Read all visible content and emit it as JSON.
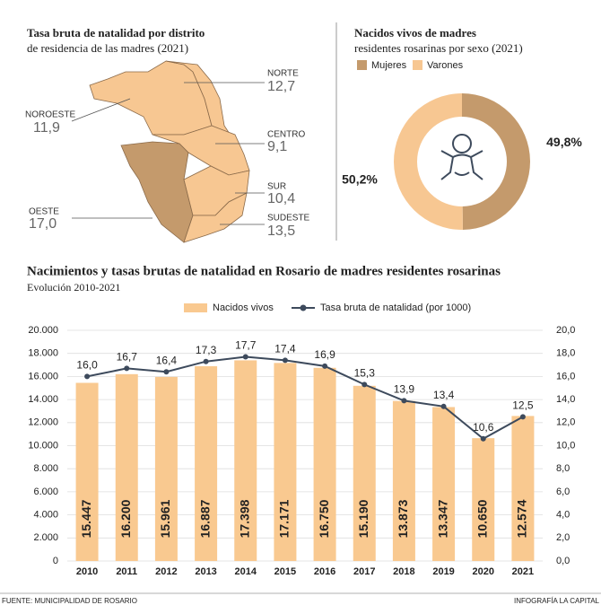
{
  "map": {
    "title": [
      "Tasa bruta de natalidad por distrito",
      "de residencia de las madres (2021)"
    ],
    "districts": [
      {
        "name": "NORTE",
        "value": {
          "value": 12.7,
          "label": "12,7"
        }
      },
      {
        "name": "NOROESTE",
        "value": {
          "value": 11.9,
          "label": "11,9"
        }
      },
      {
        "name": "CENTRO",
        "value": {
          "value": 9.1,
          "label": "9,1"
        }
      },
      {
        "name": "SUR",
        "value": {
          "value": 10.4,
          "label": "10,4"
        }
      },
      {
        "name": "OESTE",
        "value": {
          "value": 17.0,
          "label": "17,0"
        }
      },
      {
        "name": "SUDESTE",
        "value": {
          "value": 13.5,
          "label": "13,5"
        }
      }
    ]
  },
  "chart_data": [
    {
      "type": "pie",
      "donut": true,
      "title": [
        "Nacidos vivos de madres",
        "residentes rosarinas por sexo (2021)"
      ],
      "categories": [
        "Mujeres",
        "Varones"
      ],
      "values": [
        49.8,
        50.2
      ],
      "value_labels": [
        "49,8%",
        "50,2%"
      ],
      "colors": [
        "#c49a6c",
        "#f7c792"
      ]
    },
    {
      "type": "bar",
      "title": "Nacimientos y tasas brutas de natalidad en Rosario de madres residentes rosarinas",
      "subtitle": "Evolución 2010-2021",
      "categories": [
        "2010",
        "2011",
        "2012",
        "2013",
        "2014",
        "2015",
        "2016",
        "2017",
        "2018",
        "2019",
        "2020",
        "2021"
      ],
      "series": [
        {
          "name": "Nacidos vivos",
          "type": "bar",
          "color": "#f9c990",
          "values": [
            15447,
            16200,
            15961,
            16887,
            17398,
            17171,
            16750,
            15190,
            13873,
            13347,
            10650,
            12574
          ],
          "value_labels": [
            "15.447",
            "16.200",
            "15.961",
            "16.887",
            "17.398",
            "17.171",
            "16.750",
            "15.190",
            "13.873",
            "13.347",
            "10.650",
            "12.574"
          ]
        },
        {
          "name": "Tasa bruta de natalidad (por 1000)",
          "type": "line",
          "axis": "y2",
          "color": "#3d4a5c",
          "values": [
            16.0,
            16.7,
            16.4,
            17.3,
            17.7,
            17.4,
            16.9,
            15.3,
            13.9,
            13.4,
            10.6,
            12.5
          ],
          "value_labels": [
            "16,0",
            "16,7",
            "16,4",
            "17,3",
            "17,7",
            "17,4",
            "16,9",
            "15,3",
            "13,9",
            "13,4",
            "10,6",
            "12,5"
          ]
        }
      ],
      "ylim": [
        0,
        20000
      ],
      "yticks": [
        0,
        {
          "value": 2000,
          "label": "2.000"
        },
        {
          "value": 4000,
          "label": "4.000"
        },
        {
          "value": 6000,
          "label": "6.000"
        },
        {
          "value": 8000,
          "label": "8.000"
        },
        {
          "value": 10000,
          "label": "10.000"
        },
        {
          "value": 12000,
          "label": "12.000"
        },
        {
          "value": 14000,
          "label": "14.000"
        },
        {
          "value": 16000,
          "label": "16.000"
        },
        {
          "value": 18000,
          "label": "18.000"
        },
        {
          "value": 20000,
          "label": "20.000"
        }
      ],
      "y2lim": [
        0,
        20
      ],
      "y2ticks": [
        {
          "value": 0,
          "label": "0,0"
        },
        {
          "value": 2,
          "label": "2,0"
        },
        {
          "value": 4,
          "label": "4,0"
        },
        {
          "value": 6,
          "label": "6,0"
        },
        {
          "value": 8,
          "label": "8,0"
        },
        {
          "value": 10,
          "label": "10,0"
        },
        {
          "value": 12,
          "label": "12,0"
        },
        {
          "value": 14,
          "label": "14,0"
        },
        {
          "value": 16,
          "label": "16,0"
        },
        {
          "value": 18,
          "label": "18,0"
        },
        {
          "value": 20,
          "label": "20,0"
        }
      ],
      "grid": true
    }
  ],
  "footer": {
    "source": "FUENTE: MUNICIPALIDAD DE ROSARIO",
    "credit": "INFOGRAFÍA LA CAPITAL"
  }
}
